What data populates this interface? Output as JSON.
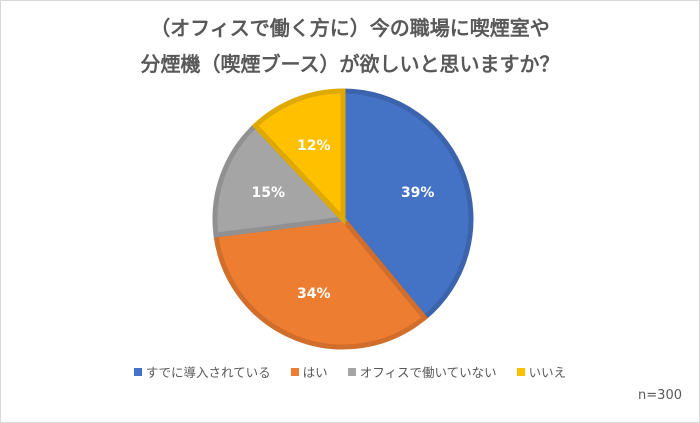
{
  "title": {
    "line1": "（オフィスで働く方に）今の職場に喫煙室や",
    "line2": "分煙機（喫煙ブース）が欲しいと思いますか？"
  },
  "note": "n=300",
  "legend": {
    "items": [
      {
        "label": "すでに導入されている",
        "color": "#4472C4"
      },
      {
        "label": "はい",
        "color": "#ED7D31"
      },
      {
        "label": "オフィスで働いていない",
        "color": "#A5A5A5"
      },
      {
        "label": "いいえ",
        "color": "#FFC000"
      }
    ]
  },
  "slice_labels": [
    "39%",
    "34%",
    "15%",
    "12%"
  ],
  "chart_data": {
    "type": "pie",
    "title": "（オフィスで働く方に）今の職場に喫煙室や分煙機（喫煙ブース）が欲しいと思いますか？",
    "categories": [
      "すでに導入されている",
      "はい",
      "オフィスで働いていない",
      "いいえ"
    ],
    "values": [
      39,
      34,
      15,
      12
    ],
    "unit": "%",
    "colors": [
      "#4472C4",
      "#ED7D31",
      "#A5A5A5",
      "#FFC000"
    ],
    "data_labels": [
      "39%",
      "34%",
      "15%",
      "12%"
    ],
    "start_angle": "12 o'clock, clockwise",
    "legend_position": "bottom",
    "annotation": "n=300"
  }
}
